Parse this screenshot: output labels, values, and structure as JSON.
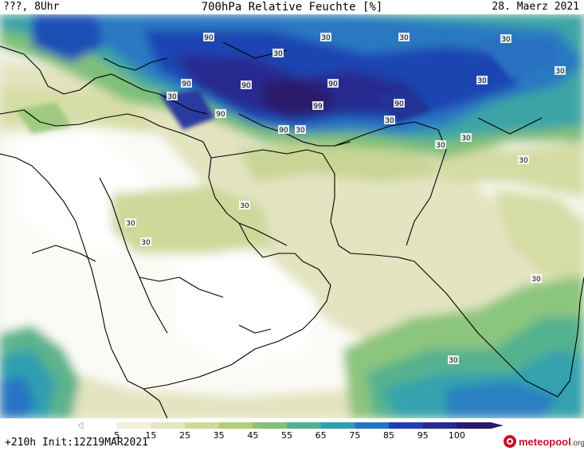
{
  "header": {
    "left": "???, 8Uhr",
    "center": "700hPa Relative Feuchte [%]",
    "right": "28. Maerz 2021"
  },
  "map": {
    "field": "700hPa Relative Feuchte",
    "region": "Middle East / South Asia",
    "contour_labels": [
      {
        "value": "90"
      },
      {
        "value": "90"
      },
      {
        "value": "90"
      },
      {
        "value": "90"
      },
      {
        "value": "90"
      },
      {
        "value": "90"
      },
      {
        "value": "90"
      },
      {
        "value": "99"
      },
      {
        "value": "30"
      },
      {
        "value": "30"
      },
      {
        "value": "30"
      },
      {
        "value": "30"
      },
      {
        "value": "30"
      },
      {
        "value": "30"
      },
      {
        "value": "30"
      },
      {
        "value": "30"
      },
      {
        "value": "30"
      },
      {
        "value": "30"
      },
      {
        "value": "30"
      },
      {
        "value": "30"
      },
      {
        "value": "30"
      },
      {
        "value": "30"
      },
      {
        "value": "30"
      },
      {
        "value": "30"
      },
      {
        "value": "30"
      }
    ]
  },
  "colorbar": {
    "ticks": [
      "5",
      "15",
      "25",
      "35",
      "45",
      "55",
      "65",
      "75",
      "85",
      "95",
      "100"
    ],
    "colors": [
      "#ffffff",
      "#f2f0dc",
      "#e4e6bf",
      "#cfda9a",
      "#b3cd76",
      "#86c07a",
      "#52b28f",
      "#2f9fb0",
      "#2874c4",
      "#1d3fb2",
      "#262a8e",
      "#2a1a6b"
    ]
  },
  "footer": {
    "init": "+210h Init:12Z19MAR2021"
  },
  "logo": {
    "name": "meteopool",
    "domain": ".org"
  }
}
